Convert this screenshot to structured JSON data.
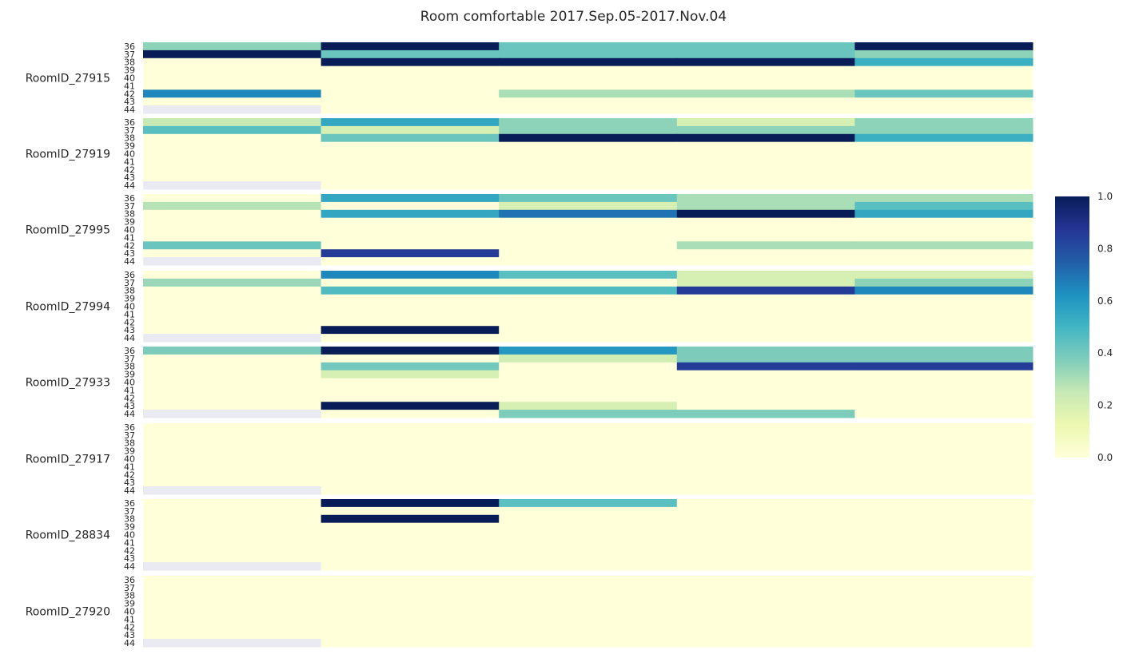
{
  "chart_data": {
    "type": "heatmap",
    "title": "Room comfortable  2017.Sep.05-2017.Nov.04",
    "xlabel": "",
    "ylabel": "",
    "colormap": "YlGnBu",
    "vmin": 0.0,
    "vmax": 1.0,
    "missing_color": "#eaeaf2",
    "columns": 5,
    "row_levels": [
      "36",
      "37",
      "38",
      "39",
      "40",
      "41",
      "42",
      "43",
      "44"
    ],
    "colorbar_ticks": [
      "0.0",
      "0.2",
      "0.4",
      "0.6",
      "0.8",
      "1.0"
    ],
    "rooms": [
      {
        "name": "RoomID_27915",
        "values": [
          [
            0.35,
            1.0,
            0.42,
            0.42,
            1.0
          ],
          [
            1.0,
            0.42,
            0.42,
            0.42,
            0.35
          ],
          [
            0.0,
            1.0,
            1.0,
            1.0,
            0.52
          ],
          [
            0.0,
            0.0,
            0.0,
            0.0,
            0.0
          ],
          [
            0.0,
            0.0,
            0.0,
            0.0,
            0.0
          ],
          [
            0.0,
            0.0,
            0.0,
            0.0,
            0.0
          ],
          [
            0.65,
            0.0,
            0.3,
            0.3,
            0.42
          ],
          [
            0.0,
            0.0,
            0.0,
            0.0,
            0.0
          ],
          [
            null,
            0.0,
            0.0,
            0.0,
            0.0
          ]
        ]
      },
      {
        "name": "RoomID_27919",
        "values": [
          [
            0.25,
            0.55,
            0.35,
            0.2,
            0.35
          ],
          [
            0.45,
            0.2,
            0.35,
            0.35,
            0.35
          ],
          [
            0.0,
            0.42,
            1.0,
            1.0,
            0.52
          ],
          [
            0.0,
            0.0,
            0.0,
            0.0,
            0.0
          ],
          [
            0.0,
            0.0,
            0.0,
            0.0,
            0.0
          ],
          [
            0.0,
            0.0,
            0.0,
            0.0,
            0.0
          ],
          [
            0.0,
            0.0,
            0.0,
            0.0,
            0.0
          ],
          [
            0.0,
            0.0,
            0.0,
            0.0,
            0.0
          ],
          [
            null,
            0.0,
            0.0,
            0.0,
            0.0
          ]
        ]
      },
      {
        "name": "RoomID_27995",
        "values": [
          [
            0.0,
            0.55,
            0.42,
            0.3,
            0.3
          ],
          [
            0.28,
            0.0,
            0.2,
            0.3,
            0.45
          ],
          [
            0.0,
            0.55,
            0.7,
            1.0,
            0.55
          ],
          [
            0.0,
            0.0,
            0.0,
            0.0,
            0.0
          ],
          [
            0.0,
            0.0,
            0.0,
            0.0,
            0.0
          ],
          [
            0.0,
            0.0,
            0.0,
            0.0,
            0.0
          ],
          [
            0.42,
            0.0,
            0.0,
            0.3,
            0.3
          ],
          [
            0.0,
            0.85,
            0.0,
            0.0,
            0.0
          ],
          [
            null,
            0.0,
            0.0,
            0.0,
            0.0
          ]
        ]
      },
      {
        "name": "RoomID_27994",
        "values": [
          [
            0.0,
            0.65,
            0.45,
            0.2,
            0.2
          ],
          [
            0.33,
            0.0,
            0.0,
            0.2,
            0.35
          ],
          [
            0.0,
            0.47,
            0.47,
            0.85,
            0.65
          ],
          [
            0.0,
            0.0,
            0.0,
            0.0,
            0.0
          ],
          [
            0.0,
            0.0,
            0.0,
            0.0,
            0.0
          ],
          [
            0.0,
            0.0,
            0.0,
            0.0,
            0.0
          ],
          [
            0.0,
            0.0,
            0.0,
            0.0,
            0.0
          ],
          [
            0.0,
            1.0,
            0.0,
            0.0,
            0.0
          ],
          [
            null,
            0.0,
            0.0,
            0.0,
            0.0
          ]
        ]
      },
      {
        "name": "RoomID_27933",
        "values": [
          [
            0.38,
            1.0,
            0.6,
            0.38,
            0.38
          ],
          [
            0.0,
            0.0,
            0.22,
            0.38,
            0.38
          ],
          [
            0.0,
            0.4,
            0.0,
            0.85,
            0.85
          ],
          [
            0.0,
            0.2,
            0.0,
            0.0,
            0.0
          ],
          [
            0.0,
            0.0,
            0.0,
            0.0,
            0.0
          ],
          [
            0.0,
            0.0,
            0.0,
            0.0,
            0.0
          ],
          [
            0.0,
            0.0,
            0.0,
            0.0,
            0.0
          ],
          [
            0.0,
            1.0,
            0.2,
            0.0,
            0.0
          ],
          [
            null,
            0.0,
            0.38,
            0.38,
            0.0
          ]
        ]
      },
      {
        "name": "RoomID_27917",
        "values": [
          [
            0.0,
            0.0,
            0.0,
            0.0,
            0.0
          ],
          [
            0.0,
            0.0,
            0.0,
            0.0,
            0.0
          ],
          [
            0.0,
            0.0,
            0.0,
            0.0,
            0.0
          ],
          [
            0.0,
            0.0,
            0.0,
            0.0,
            0.0
          ],
          [
            0.0,
            0.0,
            0.0,
            0.0,
            0.0
          ],
          [
            0.0,
            0.0,
            0.0,
            0.0,
            0.0
          ],
          [
            0.0,
            0.0,
            0.0,
            0.0,
            0.0
          ],
          [
            0.0,
            0.0,
            0.0,
            0.0,
            0.0
          ],
          [
            null,
            0.0,
            0.0,
            0.0,
            0.0
          ]
        ]
      },
      {
        "name": "RoomID_28834",
        "values": [
          [
            0.0,
            1.0,
            0.45,
            0.0,
            0.0
          ],
          [
            0.0,
            0.0,
            0.0,
            0.0,
            0.0
          ],
          [
            0.0,
            1.0,
            0.0,
            0.0,
            0.0
          ],
          [
            0.0,
            0.0,
            0.0,
            0.0,
            0.0
          ],
          [
            0.0,
            0.0,
            0.0,
            0.0,
            0.0
          ],
          [
            0.0,
            0.0,
            0.0,
            0.0,
            0.0
          ],
          [
            0.0,
            0.0,
            0.0,
            0.0,
            0.0
          ],
          [
            0.0,
            0.0,
            0.0,
            0.0,
            0.0
          ],
          [
            null,
            0.0,
            0.0,
            0.0,
            0.0
          ]
        ]
      },
      {
        "name": "RoomID_27920",
        "values": [
          [
            0.0,
            0.0,
            0.0,
            0.0,
            0.0
          ],
          [
            0.0,
            0.0,
            0.0,
            0.0,
            0.0
          ],
          [
            0.0,
            0.0,
            0.0,
            0.0,
            0.0
          ],
          [
            0.0,
            0.0,
            0.0,
            0.0,
            0.0
          ],
          [
            0.0,
            0.0,
            0.0,
            0.0,
            0.0
          ],
          [
            0.0,
            0.0,
            0.0,
            0.0,
            0.0
          ],
          [
            0.0,
            0.0,
            0.0,
            0.0,
            0.0
          ],
          [
            0.0,
            0.0,
            0.0,
            0.0,
            0.0
          ],
          [
            null,
            0.0,
            0.0,
            0.0,
            0.0
          ]
        ]
      }
    ]
  }
}
